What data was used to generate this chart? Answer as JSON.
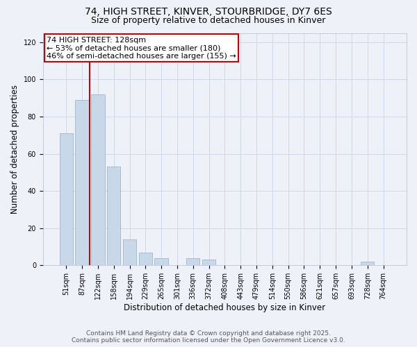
{
  "title_line1": "74, HIGH STREET, KINVER, STOURBRIDGE, DY7 6ES",
  "title_line2": "Size of property relative to detached houses in Kinver",
  "xlabel": "Distribution of detached houses by size in Kinver",
  "ylabel": "Number of detached properties",
  "bar_labels": [
    "51sqm",
    "87sqm",
    "122sqm",
    "158sqm",
    "194sqm",
    "229sqm",
    "265sqm",
    "301sqm",
    "336sqm",
    "372sqm",
    "408sqm",
    "443sqm",
    "479sqm",
    "514sqm",
    "550sqm",
    "586sqm",
    "621sqm",
    "657sqm",
    "693sqm",
    "728sqm",
    "764sqm"
  ],
  "bar_values": [
    71,
    89,
    92,
    53,
    14,
    7,
    4,
    0,
    4,
    3,
    0,
    0,
    0,
    0,
    0,
    0,
    0,
    0,
    0,
    2,
    0
  ],
  "bar_color": "#c8d8e8",
  "bar_edge_color": "#a0b8cc",
  "property_line_x": 1.5,
  "property_line_color": "#cc0000",
  "annotation_text_line1": "74 HIGH STREET: 128sqm",
  "annotation_text_line2": "← 53% of detached houses are smaller (180)",
  "annotation_text_line3": "46% of semi-detached houses are larger (155) →",
  "annotation_box_color": "#ffffff",
  "annotation_box_edge": "#cc0000",
  "ylim": [
    0,
    125
  ],
  "yticks": [
    0,
    20,
    40,
    60,
    80,
    100,
    120
  ],
  "grid_color": "#d0d8e8",
  "background_color": "#eef2f8",
  "footer_line1": "Contains HM Land Registry data © Crown copyright and database right 2025.",
  "footer_line2": "Contains public sector information licensed under the Open Government Licence v3.0.",
  "title_fontsize": 10,
  "subtitle_fontsize": 9,
  "axis_label_fontsize": 8.5,
  "tick_fontsize": 7,
  "footer_fontsize": 6.5,
  "annotation_fontsize": 8
}
